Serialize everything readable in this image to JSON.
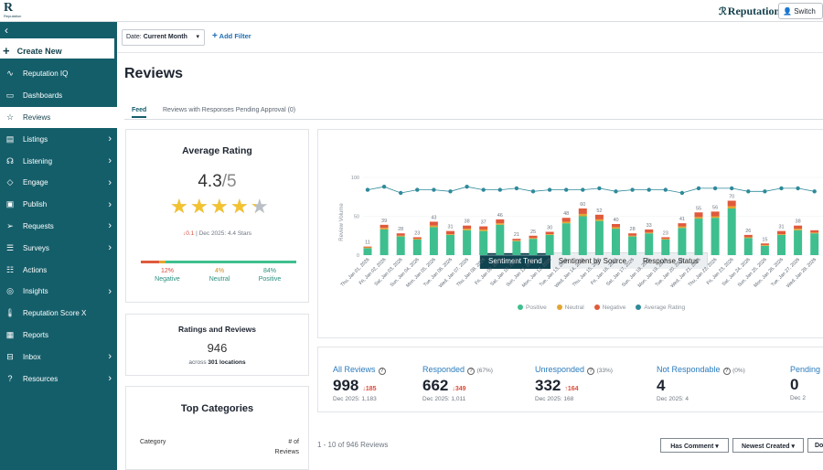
{
  "topbar": {
    "logo_mark": "R",
    "logo_text": "Reputation",
    "brand": "Reputation",
    "switch_label": "Switch"
  },
  "sidebar": {
    "create_label": "Create New",
    "items": [
      {
        "label": "Reputation IQ",
        "icon": "sparkle-icon",
        "chevron": false,
        "active": false
      },
      {
        "label": "Dashboards",
        "icon": "dashboard-icon",
        "chevron": false,
        "active": false
      },
      {
        "label": "Reviews",
        "icon": "star-icon",
        "chevron": false,
        "active": true
      },
      {
        "label": "Listings",
        "icon": "listings-icon",
        "chevron": true,
        "active": false
      },
      {
        "label": "Listening",
        "icon": "listening-icon",
        "chevron": true,
        "active": false
      },
      {
        "label": "Engage",
        "icon": "engage-icon",
        "chevron": true,
        "active": false
      },
      {
        "label": "Publish",
        "icon": "publish-icon",
        "chevron": true,
        "active": false
      },
      {
        "label": "Requests",
        "icon": "send-icon",
        "chevron": true,
        "active": false
      },
      {
        "label": "Surveys",
        "icon": "surveys-icon",
        "chevron": true,
        "active": false
      },
      {
        "label": "Actions",
        "icon": "actions-icon",
        "chevron": false,
        "active": false
      },
      {
        "label": "Insights",
        "icon": "insights-icon",
        "chevron": true,
        "active": false
      },
      {
        "label": "Reputation Score X",
        "icon": "thermometer-icon",
        "chevron": false,
        "active": false
      },
      {
        "label": "Reports",
        "icon": "reports-icon",
        "chevron": false,
        "active": false
      },
      {
        "label": "Inbox",
        "icon": "inbox-icon",
        "chevron": true,
        "active": false
      },
      {
        "label": "Resources",
        "icon": "help-icon",
        "chevron": true,
        "active": false
      }
    ]
  },
  "filters": {
    "date_prefix": "Date:",
    "date_value": "Current Month",
    "add_filter": "Add Filter"
  },
  "page": {
    "title": "Reviews",
    "tabs": [
      "Feed",
      "Reviews with Responses Pending Approval (0)"
    ]
  },
  "average_rating": {
    "title": "Average Rating",
    "value": "4.3",
    "denominator": "/5",
    "stars_value": 4.3,
    "change": "↓0.1",
    "compare": "| Dec 2025: 4.4 Stars",
    "sentiment": [
      {
        "pct": "12%",
        "label": "Negative",
        "value": 12,
        "color": "#e05a3c"
      },
      {
        "pct": "4%",
        "label": "Neutral",
        "value": 4,
        "color": "#e3a532"
      },
      {
        "pct": "84%",
        "label": "Positive",
        "value": 84,
        "color": "#3fbf8f"
      }
    ]
  },
  "ratings_reviews": {
    "title": "Ratings and Reviews",
    "value": "946",
    "sub_prefix": "across",
    "sub_bold": "301 locations"
  },
  "top_categories": {
    "title": "Top Categories",
    "col_category": "Category",
    "col_count_1": "# of",
    "col_count_2": "Reviews"
  },
  "chart_tabs": [
    "Sentiment Trend",
    "Sentiment by Source",
    "Response Status"
  ],
  "chart_data": {
    "type": "bar",
    "ylabel": "Review Volume",
    "ylim": [
      0,
      100
    ],
    "yticks": [
      0,
      50,
      100
    ],
    "categories": [
      "Thu, Jan 01, 2026",
      "Fri, Jan 02, 2026",
      "Sat, Jan 03, 2026",
      "Sun, Jan 04, 2026",
      "Mon, Jan 05, 2026",
      "Tue, Jan 06, 2026",
      "Wed, Jan 07, 2026",
      "Thu, Jan 08, 2026",
      "Fri, Jan 09, 2026",
      "Sat, Jan 10, 2026",
      "Sun, Jan 11, 2026",
      "Mon, Jan 12, 2026",
      "Tue, Jan 13, 2026",
      "Wed, Jan 14, 2026",
      "Thu, Jan 15, 2026",
      "Fri, Jan 16, 2026",
      "Sat, Jan 17, 2026",
      "Sun, Jan 18, 2026",
      "Mon, Jan 19, 2026",
      "Tue, Jan 20, 2026",
      "Wed, Jan 21, 2026",
      "Thu, Jan 22, 2026",
      "Fri, Jan 23, 2026",
      "Sat, Jan 24, 2026",
      "Sun, Jan 25, 2026",
      "Mon, Jan 26, 2026",
      "Tue, Jan 27, 2026",
      "Wed, Jan 28, 2026"
    ],
    "totals": [
      11,
      39,
      28,
      23,
      43,
      31,
      38,
      37,
      46,
      21,
      25,
      30,
      48,
      60,
      52,
      40,
      28,
      33,
      23,
      41,
      55,
      56,
      70,
      26,
      15,
      31,
      38,
      null
    ],
    "series": [
      {
        "name": "Positive",
        "color": "#3fbf8f",
        "values": [
          9,
          33,
          24,
          20,
          36,
          26,
          32,
          31,
          39,
          18,
          21,
          26,
          41,
          50,
          44,
          34,
          24,
          28,
          20,
          35,
          47,
          48,
          60,
          22,
          12,
          26,
          32,
          28
        ]
      },
      {
        "name": "Neutral",
        "color": "#e3a532",
        "values": [
          1,
          2,
          1,
          1,
          2,
          1,
          2,
          2,
          2,
          1,
          1,
          1,
          2,
          3,
          2,
          2,
          1,
          1,
          1,
          2,
          2,
          2,
          3,
          1,
          1,
          1,
          2,
          1
        ]
      },
      {
        "name": "Negative",
        "color": "#e05a3c",
        "values": [
          1,
          4,
          3,
          2,
          5,
          4,
          4,
          4,
          5,
          2,
          3,
          3,
          5,
          7,
          6,
          4,
          3,
          4,
          2,
          4,
          6,
          6,
          7,
          3,
          2,
          4,
          4,
          3
        ]
      },
      {
        "name": "Average Rating",
        "color": "#2f8a9a",
        "type": "line",
        "values": [
          4.2,
          4.4,
          4.0,
          4.2,
          4.2,
          4.1,
          4.4,
          4.2,
          4.2,
          4.3,
          4.1,
          4.2,
          4.2,
          4.2,
          4.3,
          4.1,
          4.2,
          4.2,
          4.2,
          4.0,
          4.3,
          4.3,
          4.3,
          4.1,
          4.1,
          4.3,
          4.3,
          4.1
        ]
      }
    ]
  },
  "metrics": [
    {
      "label": "All Reviews",
      "pct": "",
      "value": "998",
      "change": "↓185",
      "sub": "Dec 2025: 1,183"
    },
    {
      "label": "Responded",
      "pct": "(67%)",
      "value": "662",
      "change": "↓349",
      "sub": "Dec 2025: 1,011"
    },
    {
      "label": "Unresponded",
      "pct": "(33%)",
      "value": "332",
      "change": "↑164",
      "sub": "Dec 2025: 168"
    },
    {
      "label": "Not Respondable",
      "pct": "(0%)",
      "value": "4",
      "change": "",
      "sub": "Dec 2025: 4"
    },
    {
      "label": "Pending",
      "pct": "",
      "value": "0",
      "change": "",
      "sub": "Dec 2"
    }
  ],
  "list": {
    "count": "1 - 10 of 946 Reviews",
    "has_comment": "Has Comment",
    "sort": "Newest Created",
    "extra": "Do"
  }
}
